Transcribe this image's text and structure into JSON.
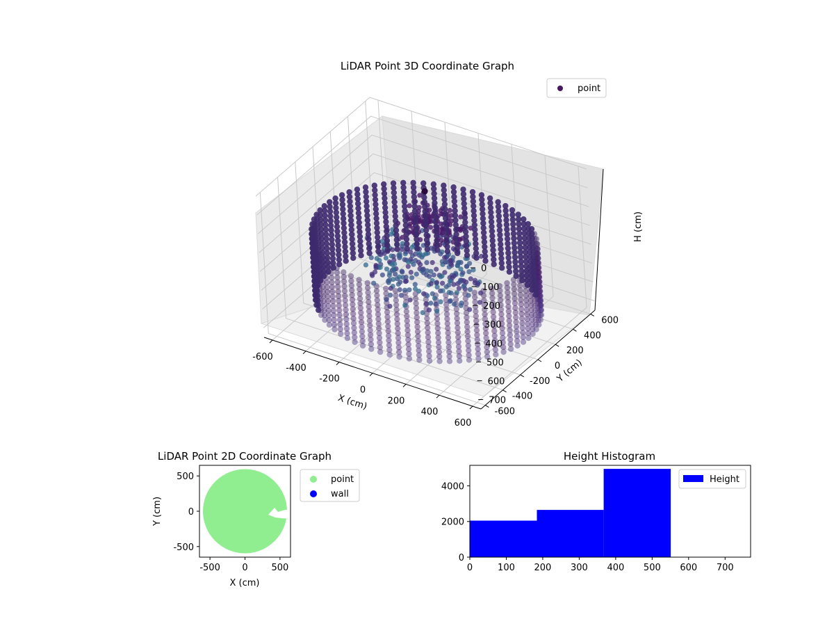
{
  "chart_data": [
    {
      "type": "scatter",
      "title": "LiDAR Point 3D Coordinate Graph",
      "xlabel": "X (cm)",
      "ylabel": "Y (cm)",
      "zlabel": "H (cm)",
      "legend": [
        "point"
      ],
      "legend_position": "top-right",
      "xlim": [
        -650,
        650
      ],
      "ylim": [
        -650,
        650
      ],
      "zlim": [
        0,
        750
      ],
      "z_inverted": true,
      "x_ticks": [
        "-600",
        "-400",
        "-200",
        "0",
        "200",
        "400",
        "600"
      ],
      "y_ticks": [
        "-600",
        "-400",
        "-200",
        "0",
        "200",
        "400",
        "600"
      ],
      "z_ticks": [
        "0",
        "100",
        "200",
        "300",
        "400",
        "500",
        "600",
        "700"
      ],
      "grid": true,
      "colormap": "viridis",
      "series": [
        {
          "name": "point",
          "ring_radius": 600,
          "ring_height_range": [
            300,
            650
          ],
          "color": "#46185f"
        }
      ]
    },
    {
      "type": "scatter",
      "title": "LiDAR Point 2D Coordinate Graph",
      "xlabel": "X (cm)",
      "ylabel": "Y (cm)",
      "xlim": [
        -650,
        650
      ],
      "ylim": [
        -650,
        650
      ],
      "x_ticks": [
        "-500",
        "0",
        "500"
      ],
      "y_ticks": [
        "-500",
        "0",
        "500"
      ],
      "legend_position": "outside-right",
      "series": [
        {
          "name": "point",
          "color": "#90ee90",
          "shape": "disk",
          "radius": 600,
          "center": [
            0,
            0
          ]
        },
        {
          "name": "wall",
          "color": "#0000ff"
        }
      ]
    },
    {
      "type": "bar",
      "title": "Height Histogram",
      "legend_position": "top-right",
      "xlim": [
        0,
        770
      ],
      "ylim": [
        0,
        5150
      ],
      "x_ticks": [
        "0",
        "100",
        "200",
        "300",
        "400",
        "500",
        "600",
        "700"
      ],
      "y_ticks": [
        "0",
        "2000",
        "4000"
      ],
      "bin_edges": [
        0,
        184,
        367,
        551
      ],
      "series": [
        {
          "name": "Height",
          "values": [
            2050,
            2650,
            4950
          ],
          "color": "#0000ff"
        }
      ]
    }
  ]
}
